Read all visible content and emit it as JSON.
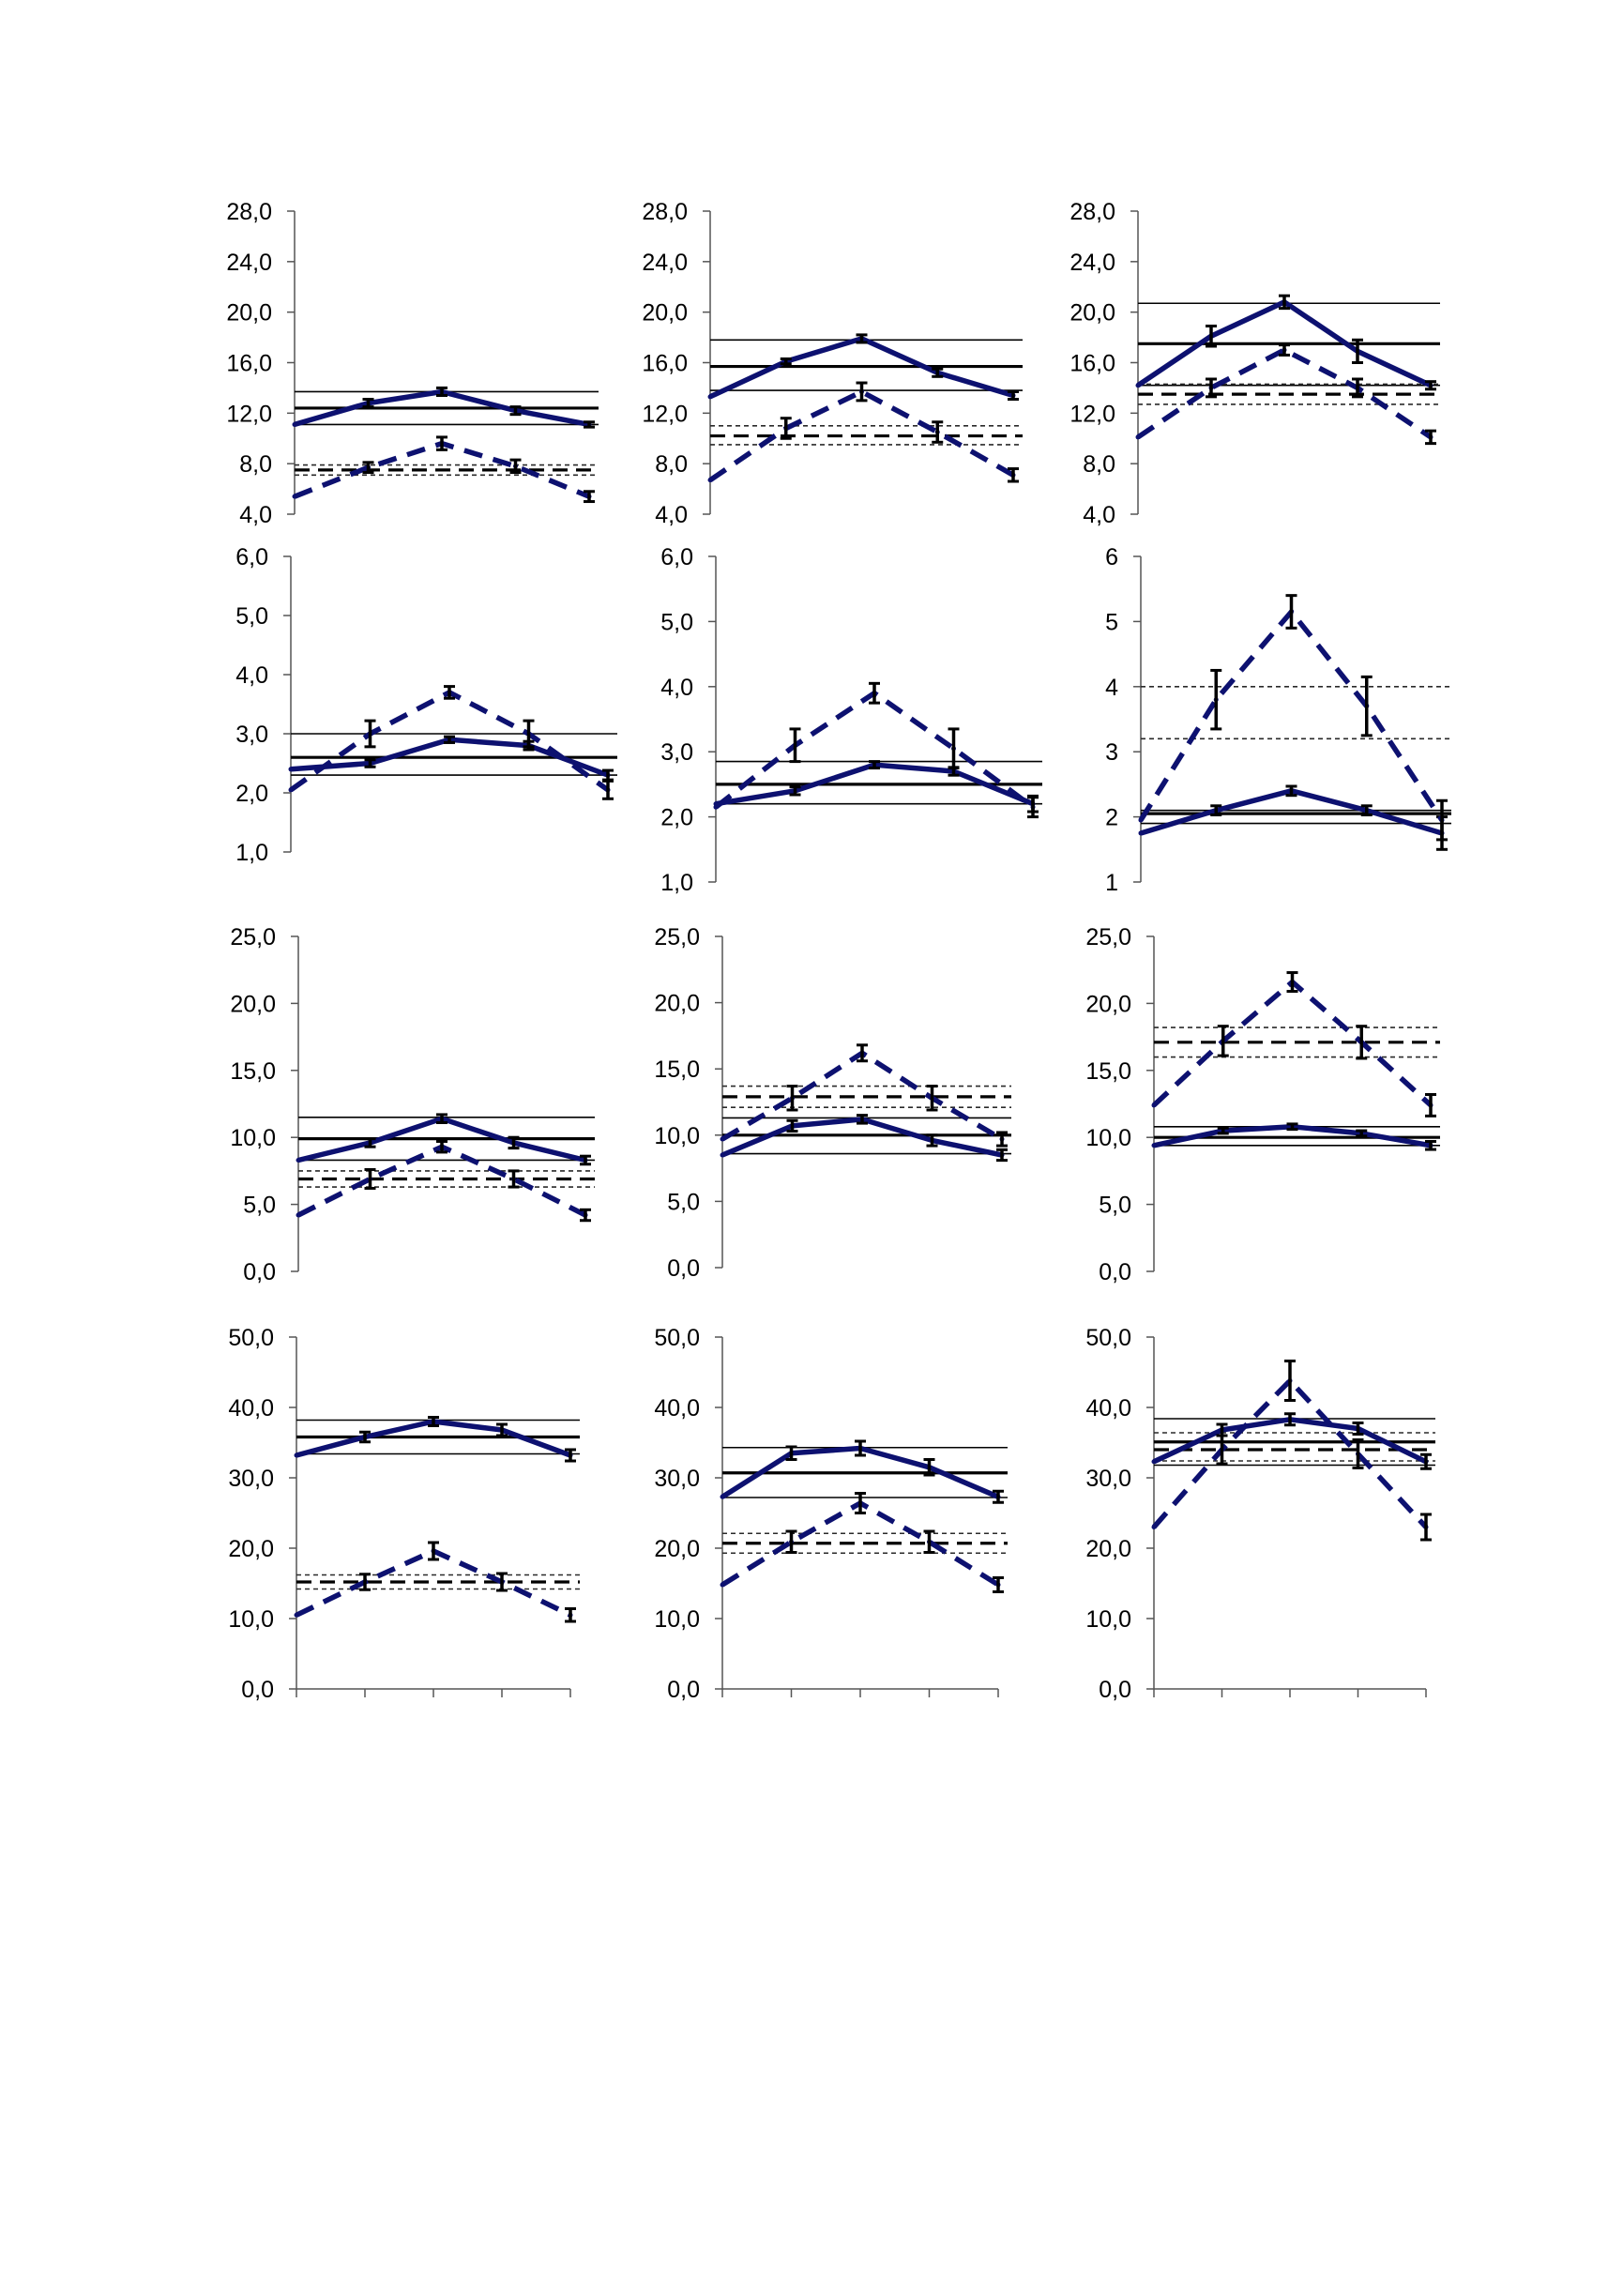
{
  "colors": {
    "series": "#0d1170",
    "reference": "#000000",
    "reference_dotted": "#2a2a2a"
  },
  "chart_data": [
    {
      "type": "line",
      "ylim": [
        4,
        28
      ],
      "yticks": [
        "28,0",
        "24,0",
        "20,0",
        "16,0",
        "12,0",
        "8,0",
        "4,0"
      ],
      "series": [
        {
          "style": "solid",
          "values": [
            11.1,
            12.8,
            13.7,
            12.2,
            11.1
          ],
          "errors": [
            0,
            0.3,
            0.3,
            0.3,
            0.2
          ]
        },
        {
          "style": "dashed",
          "values": [
            5.4,
            7.7,
            9.6,
            7.8,
            5.4
          ],
          "errors": [
            0,
            0.4,
            0.5,
            0.5,
            0.4
          ]
        }
      ],
      "ref_solid": {
        "mean": 12.4,
        "lo": 11.1,
        "hi": 13.7
      },
      "ref_dashed": {
        "mean": 7.5,
        "lo": 7.1,
        "hi": 7.9
      }
    },
    {
      "type": "line",
      "ylim": [
        4,
        28
      ],
      "yticks": [
        "28,0",
        "24,0",
        "20,0",
        "16,0",
        "12,0",
        "8,0",
        "4,0"
      ],
      "series": [
        {
          "style": "solid",
          "values": [
            13.3,
            16.1,
            17.9,
            15.2,
            13.4
          ],
          "errors": [
            0,
            0.2,
            0.3,
            0.3,
            0.3
          ]
        },
        {
          "style": "dashed",
          "values": [
            6.7,
            10.8,
            13.7,
            10.5,
            7.1
          ],
          "errors": [
            0,
            0.8,
            0.7,
            0.8,
            0.5
          ]
        }
      ],
      "ref_solid": {
        "mean": 15.7,
        "lo": 13.8,
        "hi": 17.8
      },
      "ref_dashed": {
        "mean": 10.2,
        "lo": 9.5,
        "hi": 11.0
      }
    },
    {
      "type": "line",
      "ylim": [
        4,
        28
      ],
      "yticks": [
        "28,0",
        "24,0",
        "20,0",
        "16,0",
        "12,0",
        "8,0",
        "4,0"
      ],
      "series": [
        {
          "style": "solid",
          "values": [
            14.2,
            18.1,
            20.8,
            16.9,
            14.2
          ],
          "errors": [
            0,
            0.8,
            0.5,
            0.9,
            0.3
          ]
        },
        {
          "style": "dashed",
          "values": [
            10.1,
            14.0,
            17.0,
            14.0,
            10.1
          ],
          "errors": [
            0,
            0.7,
            0.4,
            0.7,
            0.5
          ]
        }
      ],
      "ref_solid": {
        "mean": 17.5,
        "lo": 14.2,
        "hi": 20.7
      },
      "ref_dashed": {
        "mean": 13.5,
        "lo": 12.7,
        "hi": 14.3
      }
    },
    {
      "type": "line",
      "ylim": [
        1,
        6
      ],
      "yticks": [
        "6,0",
        "5,0",
        "4,0",
        "3,0",
        "2,0",
        "1,0"
      ],
      "series": [
        {
          "style": "solid",
          "values": [
            2.4,
            2.5,
            2.9,
            2.8,
            2.3
          ],
          "errors": [
            0,
            0.06,
            0.05,
            0.07,
            0.08
          ]
        },
        {
          "style": "dashed",
          "values": [
            2.05,
            3.0,
            3.7,
            3.0,
            2.05
          ],
          "errors": [
            0,
            0.22,
            0.1,
            0.22,
            0.15
          ]
        }
      ],
      "ref_solid": {
        "mean": 2.6,
        "lo": 2.3,
        "hi": 3.0
      },
      "ref_dashed": null
    },
    {
      "type": "line",
      "ylim": [
        1,
        6
      ],
      "yticks": [
        "6,0",
        "5,0",
        "4,0",
        "3,0",
        "2,0",
        "1,0"
      ],
      "series": [
        {
          "style": "solid",
          "values": [
            2.2,
            2.4,
            2.8,
            2.7,
            2.2
          ],
          "errors": [
            0,
            0.06,
            0.05,
            0.06,
            0.12
          ]
        },
        {
          "style": "dashed",
          "values": [
            2.15,
            3.1,
            3.9,
            3.05,
            2.15
          ],
          "errors": [
            0,
            0.25,
            0.15,
            0.3,
            0.15
          ]
        }
      ],
      "ref_solid": {
        "mean": 2.5,
        "lo": 2.2,
        "hi": 2.85
      },
      "ref_dashed": null
    },
    {
      "type": "line",
      "ylim": [
        1,
        6
      ],
      "yticks": [
        "6",
        "5",
        "4",
        "3",
        "2",
        "1"
      ],
      "series": [
        {
          "style": "solid",
          "values": [
            1.75,
            2.1,
            2.4,
            2.1,
            1.75
          ],
          "errors": [
            0,
            0.07,
            0.07,
            0.07,
            0.25
          ]
        },
        {
          "style": "dashed",
          "values": [
            1.95,
            3.8,
            5.15,
            3.7,
            1.95
          ],
          "errors": [
            0,
            0.45,
            0.25,
            0.45,
            0.3
          ]
        }
      ],
      "ref_solid": {
        "mean": 2.05,
        "lo": 1.9,
        "hi": 2.1
      },
      "ref_dashed": {
        "mean": null,
        "lo": 3.2,
        "hi": 4.0
      }
    },
    {
      "type": "line",
      "ylim": [
        0,
        25
      ],
      "yticks": [
        "25,0",
        "20,0",
        "15,0",
        "10,0",
        "5,0",
        "0,0"
      ],
      "series": [
        {
          "style": "solid",
          "values": [
            8.3,
            9.6,
            11.4,
            9.6,
            8.3
          ],
          "errors": [
            0,
            0.3,
            0.3,
            0.4,
            0.3
          ]
        },
        {
          "style": "dashed",
          "values": [
            4.2,
            6.9,
            9.3,
            6.9,
            4.2
          ],
          "errors": [
            0,
            0.7,
            0.4,
            0.6,
            0.4
          ]
        }
      ],
      "ref_solid": {
        "mean": 9.9,
        "lo": 8.3,
        "hi": 11.5
      },
      "ref_dashed": {
        "mean": 6.9,
        "lo": 6.3,
        "hi": 7.5
      }
    },
    {
      "type": "line",
      "ylim": [
        0,
        25
      ],
      "yticks": [
        "25,0",
        "20,0",
        "15,0",
        "10,0",
        "5,0",
        "0,0"
      ],
      "series": [
        {
          "style": "solid",
          "values": [
            8.5,
            10.7,
            11.2,
            9.6,
            8.5
          ],
          "errors": [
            0,
            0.4,
            0.3,
            0.4,
            0.4
          ]
        },
        {
          "style": "dashed",
          "values": [
            9.7,
            12.8,
            16.2,
            12.8,
            9.7
          ],
          "errors": [
            0,
            0.9,
            0.6,
            0.9,
            0.5
          ]
        }
      ],
      "ref_solid": {
        "mean": 10.0,
        "lo": 8.6,
        "hi": 11.3
      },
      "ref_dashed": {
        "mean": 12.9,
        "lo": 12.1,
        "hi": 13.7
      }
    },
    {
      "type": "line",
      "ylim": [
        0,
        25
      ],
      "yticks": [
        "25,0",
        "20,0",
        "15,0",
        "10,0",
        "5,0",
        "0,0"
      ],
      "series": [
        {
          "style": "solid",
          "values": [
            9.4,
            10.5,
            10.8,
            10.3,
            9.4
          ],
          "errors": [
            0,
            0.2,
            0.2,
            0.2,
            0.3
          ]
        },
        {
          "style": "dashed",
          "values": [
            12.4,
            17.2,
            21.6,
            17.1,
            12.4
          ],
          "errors": [
            0,
            1.1,
            0.7,
            1.2,
            0.8
          ]
        }
      ],
      "ref_solid": {
        "mean": 10.0,
        "lo": 9.4,
        "hi": 10.8
      },
      "ref_dashed": {
        "mean": 17.1,
        "lo": 16.0,
        "hi": 18.2
      }
    },
    {
      "type": "line",
      "ylim": [
        0,
        50
      ],
      "yticks": [
        "50,0",
        "40,0",
        "30,0",
        "20,0",
        "10,0",
        "0,0"
      ],
      "series": [
        {
          "style": "solid",
          "values": [
            33.2,
            35.8,
            38.0,
            36.8,
            33.2
          ],
          "errors": [
            0,
            0.7,
            0.6,
            0.8,
            0.8
          ]
        },
        {
          "style": "dashed",
          "values": [
            10.5,
            15.2,
            19.6,
            15.2,
            10.5
          ],
          "errors": [
            0,
            1.1,
            1.2,
            1.2,
            0.9
          ]
        }
      ],
      "ref_solid": {
        "mean": 35.8,
        "lo": 33.4,
        "hi": 38.2
      },
      "ref_dashed": {
        "mean": 15.2,
        "lo": 14.2,
        "hi": 16.2
      }
    },
    {
      "type": "line",
      "ylim": [
        0,
        50
      ],
      "yticks": [
        "50,0",
        "40,0",
        "30,0",
        "20,0",
        "10,0",
        "0,0"
      ],
      "series": [
        {
          "style": "solid",
          "values": [
            27.3,
            33.5,
            34.2,
            31.5,
            27.3
          ],
          "errors": [
            0,
            0.9,
            1.0,
            1.1,
            0.8
          ]
        },
        {
          "style": "dashed",
          "values": [
            14.8,
            20.9,
            26.4,
            20.9,
            14.8
          ],
          "errors": [
            0,
            1.5,
            1.4,
            1.5,
            1.0
          ]
        }
      ],
      "ref_solid": {
        "mean": 30.7,
        "lo": 27.2,
        "hi": 34.3
      },
      "ref_dashed": {
        "mean": 20.7,
        "lo": 19.3,
        "hi": 22.1
      }
    },
    {
      "type": "line",
      "ylim": [
        0,
        50
      ],
      "yticks": [
        "50,0",
        "40,0",
        "30,0",
        "20,0",
        "10,0",
        "0,0"
      ],
      "series": [
        {
          "style": "solid",
          "values": [
            32.3,
            36.8,
            38.3,
            37.0,
            32.3
          ],
          "errors": [
            0,
            0.8,
            0.8,
            0.8,
            1.0
          ]
        },
        {
          "style": "dashed",
          "values": [
            23.0,
            34.0,
            43.8,
            33.4,
            23.0
          ],
          "errors": [
            0,
            2.0,
            2.8,
            2.0,
            1.8
          ]
        }
      ],
      "ref_solid": {
        "mean": 35.1,
        "lo": 31.8,
        "hi": 38.4
      },
      "ref_dashed": {
        "mean": 34.0,
        "lo": 32.4,
        "hi": 36.4
      }
    }
  ]
}
